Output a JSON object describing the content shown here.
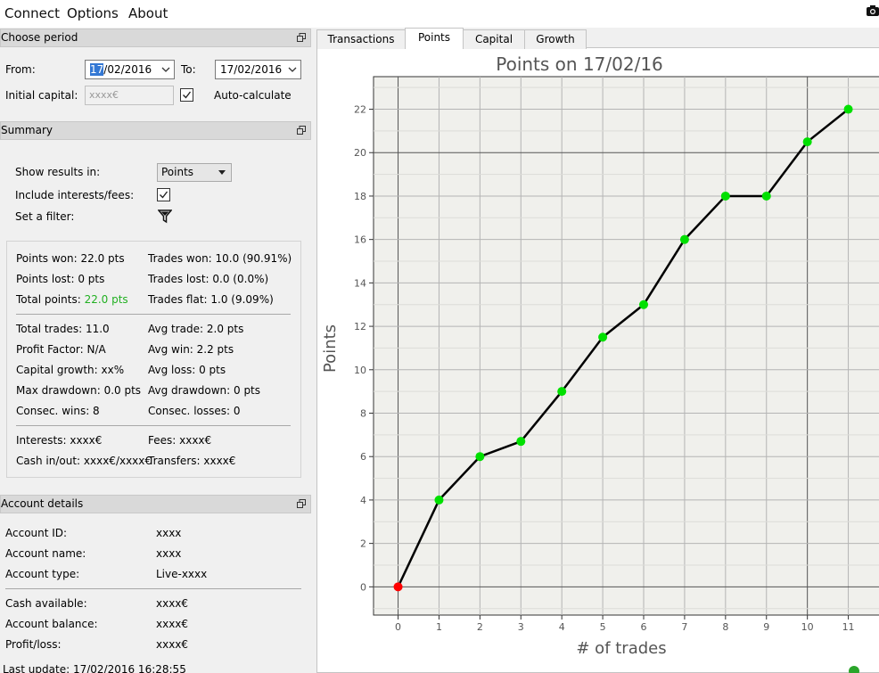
{
  "menu": {
    "connect": "Connect",
    "options": "Options",
    "about": "About"
  },
  "icons": {
    "camera": "camera-icon",
    "float": "dock-float-icon",
    "filter": "funnel-icon"
  },
  "period": {
    "title": "Choose period",
    "from_label": "From:",
    "from_day": "17",
    "from_rest": "/02/2016",
    "to_label": "To:",
    "to_value": "17/02/2016",
    "initial_capital_label": "Initial capital:",
    "initial_capital_placeholder": "xxxx€",
    "auto_calculate_label": "Auto-calculate",
    "auto_calculate_checked": true
  },
  "summary": {
    "title": "Summary",
    "show_results_label": "Show results in:",
    "show_results_value": "Points",
    "include_interests_label": "Include interests/fees:",
    "include_interests_checked": true,
    "filter_label": "Set a filter:",
    "points_won": "Points won: 22.0 pts",
    "points_lost": "Points lost: 0 pts",
    "total_points_label": "Total points: ",
    "total_points_value": "22.0 pts",
    "trades_won": "Trades won: 10.0 (90.91%)",
    "trades_lost": "Trades lost: 0.0 (0.0%)",
    "trades_flat": "Trades flat: 1.0 (9.09%)",
    "total_trades": "Total trades: 11.0",
    "avg_trade": "Avg trade: 2.0 pts",
    "profit_factor": "Profit Factor: N/A",
    "avg_win": "Avg win: 2.2 pts",
    "capital_growth": "Capital growth: xx%",
    "avg_loss": "Avg loss: 0 pts",
    "max_drawdown": "Max drawdown: 0.0 pts",
    "avg_drawdown": "Avg drawdown: 0 pts",
    "consec_wins": "Consec. wins: 8",
    "consec_losses": "Consec. losses: 0",
    "interests": "Interests: xxxx€",
    "fees": "Fees: xxxx€",
    "cash_in_out": "Cash in/out: xxxx€/xxxx€",
    "transfers": "Transfers: xxxx€",
    "accent_green": "#22b022"
  },
  "account": {
    "title": "Account details",
    "id_label": "Account ID:",
    "id_value": "xxxx",
    "name_label": "Account name:",
    "name_value": "xxxx",
    "type_label": "Account type:",
    "type_value": "Live-xxxx",
    "cash_label": "Cash available:",
    "cash_value": "xxxx€",
    "balance_label": "Account balance:",
    "balance_value": "xxxx€",
    "pl_label": "Profit/loss:",
    "pl_value": "xxxx€"
  },
  "status": {
    "last_update": "Last update: 17/02/2016 16:28:55",
    "indicator_color": "#2aa52a"
  },
  "tabs": [
    {
      "label": "Transactions",
      "active": false
    },
    {
      "label": "Points",
      "active": true
    },
    {
      "label": "Capital",
      "active": false
    },
    {
      "label": "Growth",
      "active": false
    }
  ],
  "chart_data": {
    "type": "line",
    "title": "Points on 17/02/16",
    "xlabel": "# of trades",
    "ylabel": "Points",
    "x": [
      0,
      1,
      2,
      3,
      4,
      5,
      6,
      7,
      8,
      9,
      10,
      11
    ],
    "y": [
      0,
      4,
      6,
      6.7,
      9,
      11.5,
      13,
      16,
      18,
      18,
      20.5,
      22
    ],
    "point_colors": [
      "#ff0000",
      "#00e000",
      "#00e000",
      "#00e000",
      "#00e000",
      "#00e000",
      "#00e000",
      "#00e000",
      "#00e000",
      "#00e000",
      "#00e000",
      "#00e000"
    ],
    "line_color": "#000000",
    "x_ticks": [
      "0",
      "1",
      "2",
      "3",
      "4",
      "5",
      "6",
      "7",
      "8",
      "9",
      "10",
      "11"
    ],
    "y_ticks": [
      "0",
      "2",
      "4",
      "6",
      "8",
      "10",
      "12",
      "14",
      "16",
      "18",
      "20",
      "22"
    ],
    "xlim": [
      -0.6,
      11.75
    ],
    "ylim": [
      -1.3,
      23.5
    ],
    "grid": true,
    "background": "#f0f0ec"
  }
}
